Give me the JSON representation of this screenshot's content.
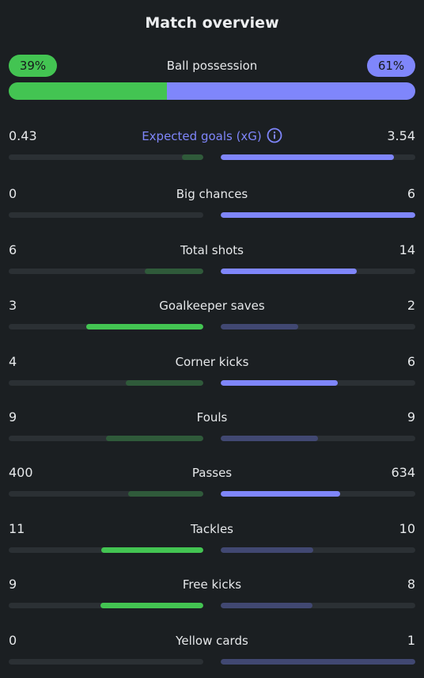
{
  "title": "Match overview",
  "colors": {
    "home_strong": "#43c452",
    "home_weak": "#2f5a3a",
    "away_strong": "#7f86fb",
    "away_weak": "#414872",
    "track": "#2b3034"
  },
  "possession": {
    "label": "Ball possession",
    "home_text": "39%",
    "away_text": "61%",
    "home": 39,
    "away": 61
  },
  "stats": [
    {
      "label": "Expected goals (xG)",
      "home": "0.43",
      "away": "3.54",
      "home_frac": 0.108,
      "away_frac": 0.892,
      "home_strong": false,
      "away_strong": true,
      "link": true,
      "icon": "info-icon"
    },
    {
      "label": "Big chances",
      "home": "0",
      "away": "6",
      "home_frac": 0.0,
      "away_frac": 1.0,
      "home_strong": false,
      "away_strong": true,
      "link": false
    },
    {
      "label": "Total shots",
      "home": "6",
      "away": "14",
      "home_frac": 0.3,
      "away_frac": 0.7,
      "home_strong": false,
      "away_strong": true,
      "link": false
    },
    {
      "label": "Goalkeeper saves",
      "home": "3",
      "away": "2",
      "home_frac": 0.6,
      "away_frac": 0.4,
      "home_strong": true,
      "away_strong": false,
      "link": false
    },
    {
      "label": "Corner kicks",
      "home": "4",
      "away": "6",
      "home_frac": 0.4,
      "away_frac": 0.6,
      "home_strong": false,
      "away_strong": true,
      "link": false
    },
    {
      "label": "Fouls",
      "home": "9",
      "away": "9",
      "home_frac": 0.5,
      "away_frac": 0.5,
      "home_strong": false,
      "away_strong": false,
      "link": false
    },
    {
      "label": "Passes",
      "home": "400",
      "away": "634",
      "home_frac": 0.387,
      "away_frac": 0.613,
      "home_strong": false,
      "away_strong": true,
      "link": false
    },
    {
      "label": "Tackles",
      "home": "11",
      "away": "10",
      "home_frac": 0.524,
      "away_frac": 0.476,
      "home_strong": true,
      "away_strong": false,
      "link": false
    },
    {
      "label": "Free kicks",
      "home": "9",
      "away": "8",
      "home_frac": 0.529,
      "away_frac": 0.471,
      "home_strong": true,
      "away_strong": false,
      "link": false
    },
    {
      "label": "Yellow cards",
      "home": "0",
      "away": "1",
      "home_frac": 0.0,
      "away_frac": 1.0,
      "home_strong": false,
      "away_strong": false,
      "link": false
    }
  ]
}
